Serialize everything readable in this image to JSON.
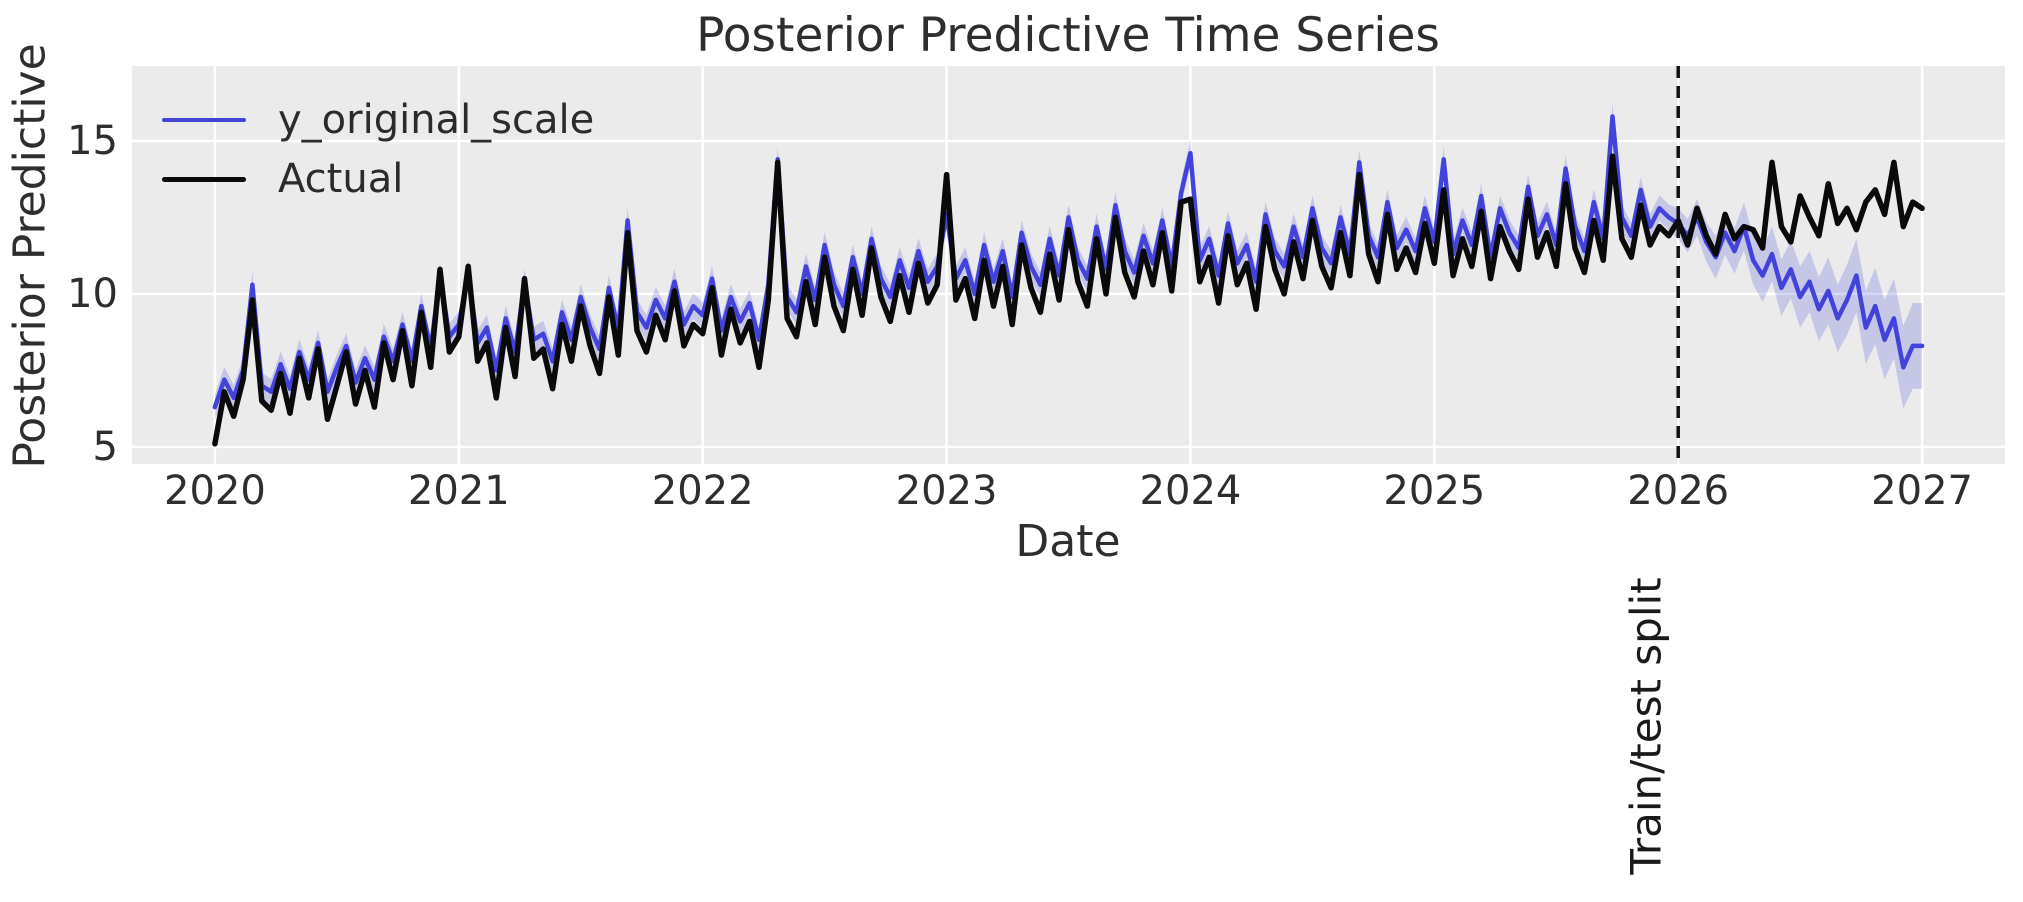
{
  "chart_data": {
    "type": "line",
    "title": "Posterior Predictive Time Series",
    "xlabel": "Date",
    "ylabel": "Posterior Predictive",
    "xlim": [
      2019.66,
      2027.34
    ],
    "ylim": [
      4.44,
      17.45
    ],
    "grid": true,
    "plot_background": "#ebebeb",
    "grid_color": "#ffffff",
    "legend_position": "upper left",
    "x_ticks": [
      2020,
      2021,
      2022,
      2023,
      2024,
      2025,
      2026,
      2027
    ],
    "y_ticks": [
      5,
      10,
      15
    ],
    "x": {
      "start": 2020.0,
      "step": 0.0384615,
      "count": 183,
      "unit": "decimal_year"
    },
    "series": [
      {
        "name": "y_original_scale",
        "color": "#4343dc",
        "linewidth": 4.5,
        "values": [
          6.3,
          7.2,
          6.6,
          7.5,
          10.3,
          7.0,
          6.8,
          7.7,
          6.9,
          8.1,
          7.2,
          8.4,
          6.8,
          7.6,
          8.3,
          7.1,
          7.9,
          7.2,
          8.6,
          7.8,
          9.0,
          7.8,
          9.6,
          8.2,
          10.6,
          8.6,
          9.0,
          10.7,
          8.4,
          8.9,
          7.5,
          9.2,
          8.1,
          10.4,
          8.5,
          8.7,
          7.8,
          9.4,
          8.5,
          9.9,
          8.9,
          8.2,
          10.2,
          8.8,
          12.4,
          9.4,
          8.9,
          9.8,
          9.2,
          10.4,
          9.0,
          9.6,
          9.3,
          10.5,
          8.8,
          9.9,
          9.1,
          9.7,
          8.5,
          10.3,
          14.4,
          9.9,
          9.4,
          10.9,
          9.8,
          11.6,
          10.3,
          9.6,
          11.2,
          10.0,
          11.8,
          10.5,
          9.9,
          11.1,
          10.2,
          11.4,
          10.4,
          10.9,
          12.6,
          10.5,
          11.1,
          10.0,
          11.6,
          10.4,
          11.4,
          9.9,
          12.0,
          10.9,
          10.3,
          11.8,
          10.6,
          12.5,
          11.1,
          10.5,
          12.2,
          10.8,
          12.9,
          11.4,
          10.7,
          11.9,
          11.0,
          12.4,
          10.9,
          13.3,
          14.6,
          11.1,
          11.8,
          10.6,
          12.3,
          11.0,
          11.6,
          10.4,
          12.6,
          11.4,
          10.9,
          12.2,
          11.2,
          12.8,
          11.5,
          11.0,
          12.5,
          11.3,
          14.3,
          11.9,
          11.2,
          13.0,
          11.5,
          12.1,
          11.4,
          12.8,
          11.7,
          14.4,
          11.3,
          12.4,
          11.6,
          13.2,
          11.2,
          12.8,
          12.0,
          11.5,
          13.5,
          11.9,
          12.6,
          11.6,
          14.1,
          12.2,
          11.4,
          13.0,
          11.8,
          15.8,
          12.5,
          11.9,
          13.4,
          12.2,
          12.8,
          12.5,
          12.3,
          11.9,
          12.5,
          11.7,
          11.2,
          12.0,
          11.4,
          12.2,
          11.1,
          10.6,
          11.3,
          10.2,
          10.8,
          9.9,
          10.4,
          9.5,
          10.1,
          9.2,
          9.8,
          10.6,
          8.9,
          9.6,
          8.5,
          9.2,
          7.6,
          8.3,
          8.3
        ]
      },
      {
        "name": "Actual",
        "color": "#0a0a0a",
        "linewidth": 5.5,
        "values": [
          5.1,
          6.8,
          6.0,
          7.2,
          9.8,
          6.5,
          6.2,
          7.4,
          6.1,
          7.9,
          6.6,
          8.2,
          5.9,
          7.0,
          8.1,
          6.4,
          7.5,
          6.3,
          8.4,
          7.2,
          8.8,
          7.0,
          9.4,
          7.6,
          10.8,
          8.1,
          8.6,
          10.9,
          7.8,
          8.4,
          6.6,
          8.9,
          7.3,
          10.5,
          7.9,
          8.2,
          6.9,
          9.0,
          7.8,
          9.6,
          8.3,
          7.4,
          9.9,
          8.0,
          12.0,
          8.8,
          8.1,
          9.3,
          8.5,
          10.1,
          8.3,
          9.0,
          8.7,
          10.2,
          8.0,
          9.5,
          8.4,
          9.1,
          7.6,
          9.8,
          14.3,
          9.2,
          8.6,
          10.4,
          9.0,
          11.2,
          9.6,
          8.8,
          10.8,
          9.3,
          11.5,
          9.9,
          9.1,
          10.6,
          9.4,
          11.0,
          9.7,
          10.3,
          13.9,
          9.8,
          10.5,
          9.2,
          11.1,
          9.6,
          10.9,
          9.0,
          11.6,
          10.2,
          9.4,
          11.3,
          9.8,
          12.1,
          10.4,
          9.6,
          11.8,
          10.0,
          12.5,
          10.7,
          9.9,
          11.4,
          10.3,
          12.0,
          10.1,
          13.0,
          13.1,
          10.4,
          11.2,
          9.7,
          11.9,
          10.3,
          11.0,
          9.5,
          12.2,
          10.8,
          10.0,
          11.7,
          10.5,
          12.4,
          10.9,
          10.2,
          12.0,
          10.6,
          13.9,
          11.3,
          10.4,
          12.6,
          10.8,
          11.5,
          10.7,
          12.3,
          11.0,
          13.4,
          10.6,
          11.8,
          10.9,
          12.7,
          10.5,
          12.2,
          11.4,
          10.8,
          13.1,
          11.2,
          12.0,
          10.9,
          13.6,
          11.5,
          10.7,
          12.4,
          11.1,
          14.5,
          11.8,
          11.2,
          12.9,
          11.6,
          12.2,
          11.9,
          12.4,
          11.6,
          12.8,
          11.9,
          11.3,
          12.6,
          11.8,
          12.2,
          12.1,
          11.5,
          14.3,
          12.2,
          11.7,
          13.2,
          12.5,
          11.9,
          13.6,
          12.3,
          12.8,
          12.1,
          13.0,
          13.4,
          12.6,
          14.3,
          12.2,
          13.0,
          12.8
        ]
      }
    ],
    "band": {
      "applies_to": "y_original_scale",
      "color": "#4343dc",
      "opacity": 0.22,
      "split_index": 156,
      "halfwidth_train": 0.42,
      "halfwidth_test": [
        0.5,
        0.55,
        0.6,
        0.65,
        0.7,
        0.72,
        0.75,
        0.78,
        0.8,
        0.85,
        0.9,
        0.92,
        0.95,
        1.0,
        1.0,
        1.05,
        1.1,
        1.1,
        1.15,
        1.2,
        1.2,
        1.25,
        1.3,
        1.3,
        1.35,
        1.4,
        1.4
      ]
    },
    "vline": {
      "x": 2026.0,
      "label": "Train/test split",
      "color": "#111111",
      "style": "dashed",
      "linewidth": 3.5
    }
  },
  "legend": [
    {
      "label": "y_original_scale",
      "color": "#4343dc",
      "thickness": 4.5
    },
    {
      "label": "Actual",
      "color": "#0a0a0a",
      "thickness": 5.5
    }
  ]
}
